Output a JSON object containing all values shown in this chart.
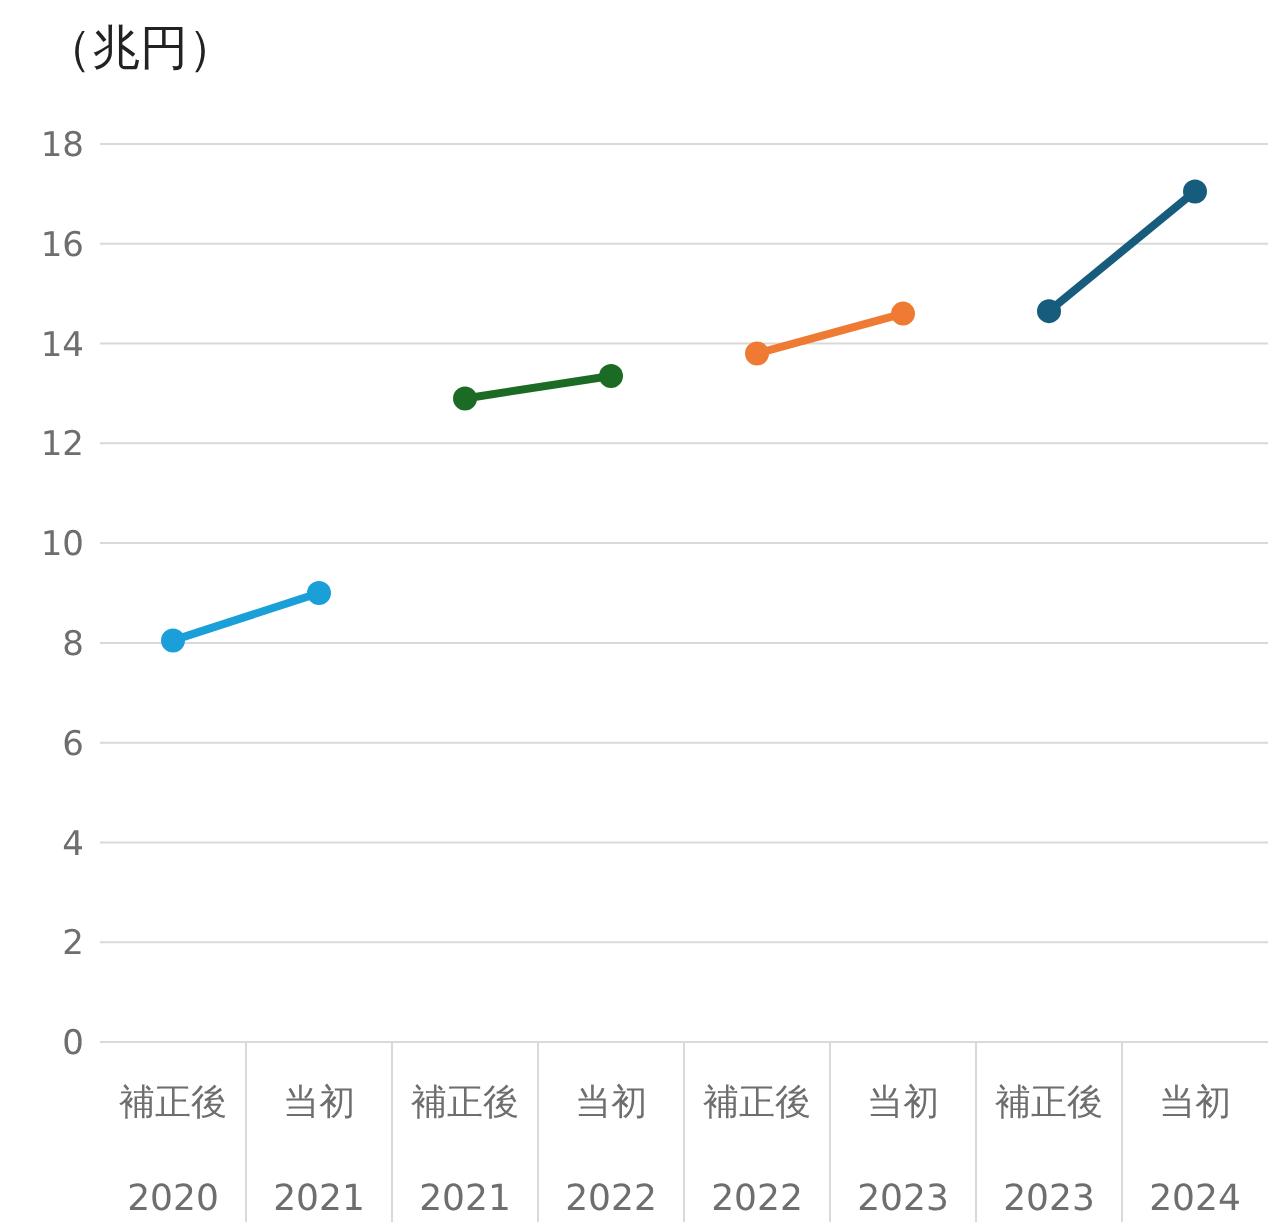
{
  "chart_data": {
    "type": "line",
    "ylabel": "（兆円）",
    "categories": [
      "補正後\n2020",
      "当初\n2021",
      "補正後\n2021",
      "当初\n2022",
      "補正後\n2022",
      "当初\n2023",
      "補正後\n2023",
      "当初\n2024"
    ],
    "series": [
      {
        "color": "#1a9fd8",
        "values": [
          8.05,
          9.0,
          null,
          null,
          null,
          null,
          null,
          null
        ]
      },
      {
        "color": "#1b6b25",
        "values": [
          null,
          null,
          12.9,
          13.35,
          null,
          null,
          null,
          null
        ]
      },
      {
        "color": "#ef7a33",
        "values": [
          null,
          null,
          null,
          null,
          13.8,
          14.6,
          null,
          null
        ]
      },
      {
        "color": "#175c7d",
        "values": [
          null,
          null,
          null,
          null,
          null,
          null,
          14.65,
          17.05
        ]
      }
    ],
    "ylim": [
      0,
      18
    ],
    "yticks": [
      0,
      2,
      4,
      6,
      8,
      10,
      12,
      14,
      16,
      18
    ],
    "grid": "y",
    "marker": "circle",
    "line_style": "solid"
  }
}
